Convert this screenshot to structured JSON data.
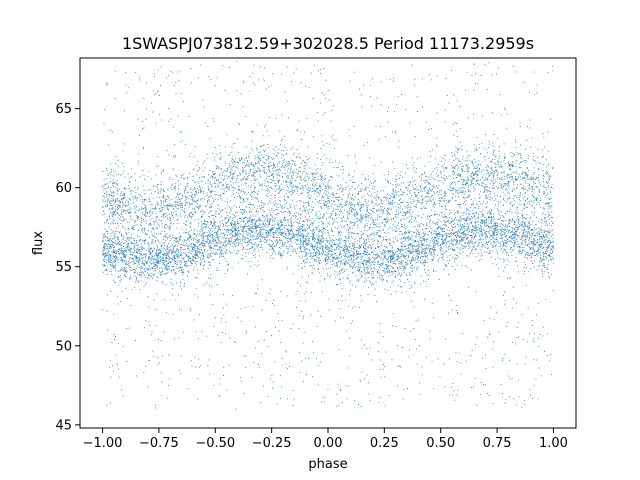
{
  "chart_data": {
    "type": "scatter",
    "title": "1SWASPJ073812.59+302028.5 Period 11173.2959s",
    "xlabel": "phase",
    "ylabel": "flux",
    "xlim": [
      -1.1,
      1.1
    ],
    "ylim": [
      44.8,
      68.2
    ],
    "xticks": [
      -1.0,
      -0.75,
      -0.5,
      -0.25,
      0.0,
      0.25,
      0.5,
      0.75,
      1.0
    ],
    "xtick_labels": [
      "−1.00",
      "−0.75",
      "−0.50",
      "−0.25",
      "0.00",
      "0.25",
      "0.50",
      "0.75",
      "1.00"
    ],
    "yticks": [
      45,
      50,
      55,
      60,
      65
    ],
    "ytick_labels": [
      "45",
      "50",
      "55",
      "60",
      "65"
    ],
    "grid": false,
    "marker_color": "#1f77b4",
    "series": [
      {
        "description_phase_range": [
          -1.0,
          1.0
        ],
        "lower_band": {
          "mean_flux": 56.4,
          "amplitude": 0.9,
          "peak_phase": -0.3,
          "period_in_phase": 1.0,
          "spread": 0.8
        },
        "upper_band": {
          "mean_flux": 59.7,
          "amplitude": 1.1,
          "peak_phase": -0.3,
          "period_in_phase": 1.0,
          "spread": 1.0
        },
        "outlier_flux_range": [
          46.0,
          68.0
        ]
      }
    ]
  }
}
